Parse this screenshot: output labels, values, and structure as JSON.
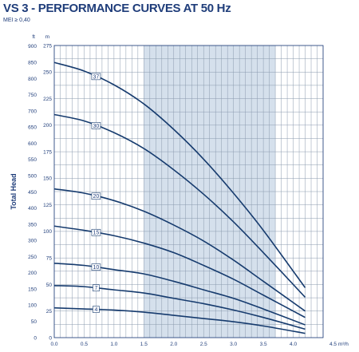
{
  "chart_data": {
    "type": "line",
    "title": "VS 3 - PERFORMANCE CURVES AT 50 Hz",
    "subtitle": "MEI ≥ 0,40",
    "ylabel": "Total Head",
    "y_unit_left": "ft",
    "y_unit_right": "m",
    "x_unit": "4.5 m³/h",
    "xlim": [
      0,
      4.5
    ],
    "ylim_m": [
      0,
      275
    ],
    "x_ticks": [
      "0.0",
      "0.5",
      "1.0",
      "1.5",
      "2.0",
      "2.5",
      "3.0",
      "3.5",
      "4.0"
    ],
    "y_ticks_ft": [
      0,
      50,
      100,
      150,
      200,
      250,
      300,
      350,
      400,
      450,
      500,
      550,
      600,
      650,
      700,
      750,
      800,
      850,
      900
    ],
    "y_ticks_m": [
      0,
      25,
      50,
      75,
      100,
      125,
      150,
      175,
      200,
      225,
      250,
      275
    ],
    "shaded_range": [
      1.5,
      3.7
    ],
    "grid": true,
    "series": [
      {
        "name": "37",
        "label_x": 0.7,
        "x": [
          0,
          0.5,
          1.0,
          1.5,
          2.0,
          2.5,
          3.0,
          3.5,
          4.2
        ],
        "values": [
          259,
          251,
          238,
          220,
          196,
          168,
          136,
          101,
          47
        ]
      },
      {
        "name": "30",
        "label_x": 0.7,
        "x": [
          0,
          0.5,
          1.0,
          1.5,
          2.0,
          2.5,
          3.0,
          3.5,
          4.2
        ],
        "values": [
          210,
          204,
          193,
          178,
          158,
          135,
          109,
          80,
          38
        ]
      },
      {
        "name": "20",
        "label_x": 0.7,
        "x": [
          0,
          0.5,
          1.0,
          1.5,
          2.0,
          2.5,
          3.0,
          3.5,
          4.2
        ],
        "values": [
          140,
          136,
          129,
          119,
          106,
          91,
          73,
          53,
          25
        ]
      },
      {
        "name": "15",
        "label_x": 0.7,
        "x": [
          0,
          0.5,
          1.0,
          1.5,
          2.0,
          2.5,
          3.0,
          3.5,
          4.2
        ],
        "values": [
          105,
          101,
          96,
          89,
          80,
          68,
          55,
          40,
          19
        ]
      },
      {
        "name": "10",
        "label_x": 0.7,
        "x": [
          0,
          0.5,
          1.0,
          1.5,
          2.0,
          2.5,
          3.0,
          3.5,
          4.2
        ],
        "values": [
          70,
          68,
          64,
          60,
          53,
          45,
          37,
          27,
          12
        ]
      },
      {
        "name": "7",
        "label_x": 0.7,
        "x": [
          0,
          0.5,
          1.0,
          1.5,
          2.0,
          2.5,
          3.0,
          3.5,
          4.2
        ],
        "values": [
          49,
          48,
          45,
          42,
          37,
          32,
          26,
          19,
          8
        ]
      },
      {
        "name": "4",
        "label_x": 0.7,
        "x": [
          0,
          0.5,
          1.0,
          1.5,
          2.0,
          2.5,
          3.0,
          3.5,
          4.2
        ],
        "values": [
          28,
          27,
          26,
          24,
          21,
          18,
          15,
          11,
          4
        ]
      }
    ]
  }
}
